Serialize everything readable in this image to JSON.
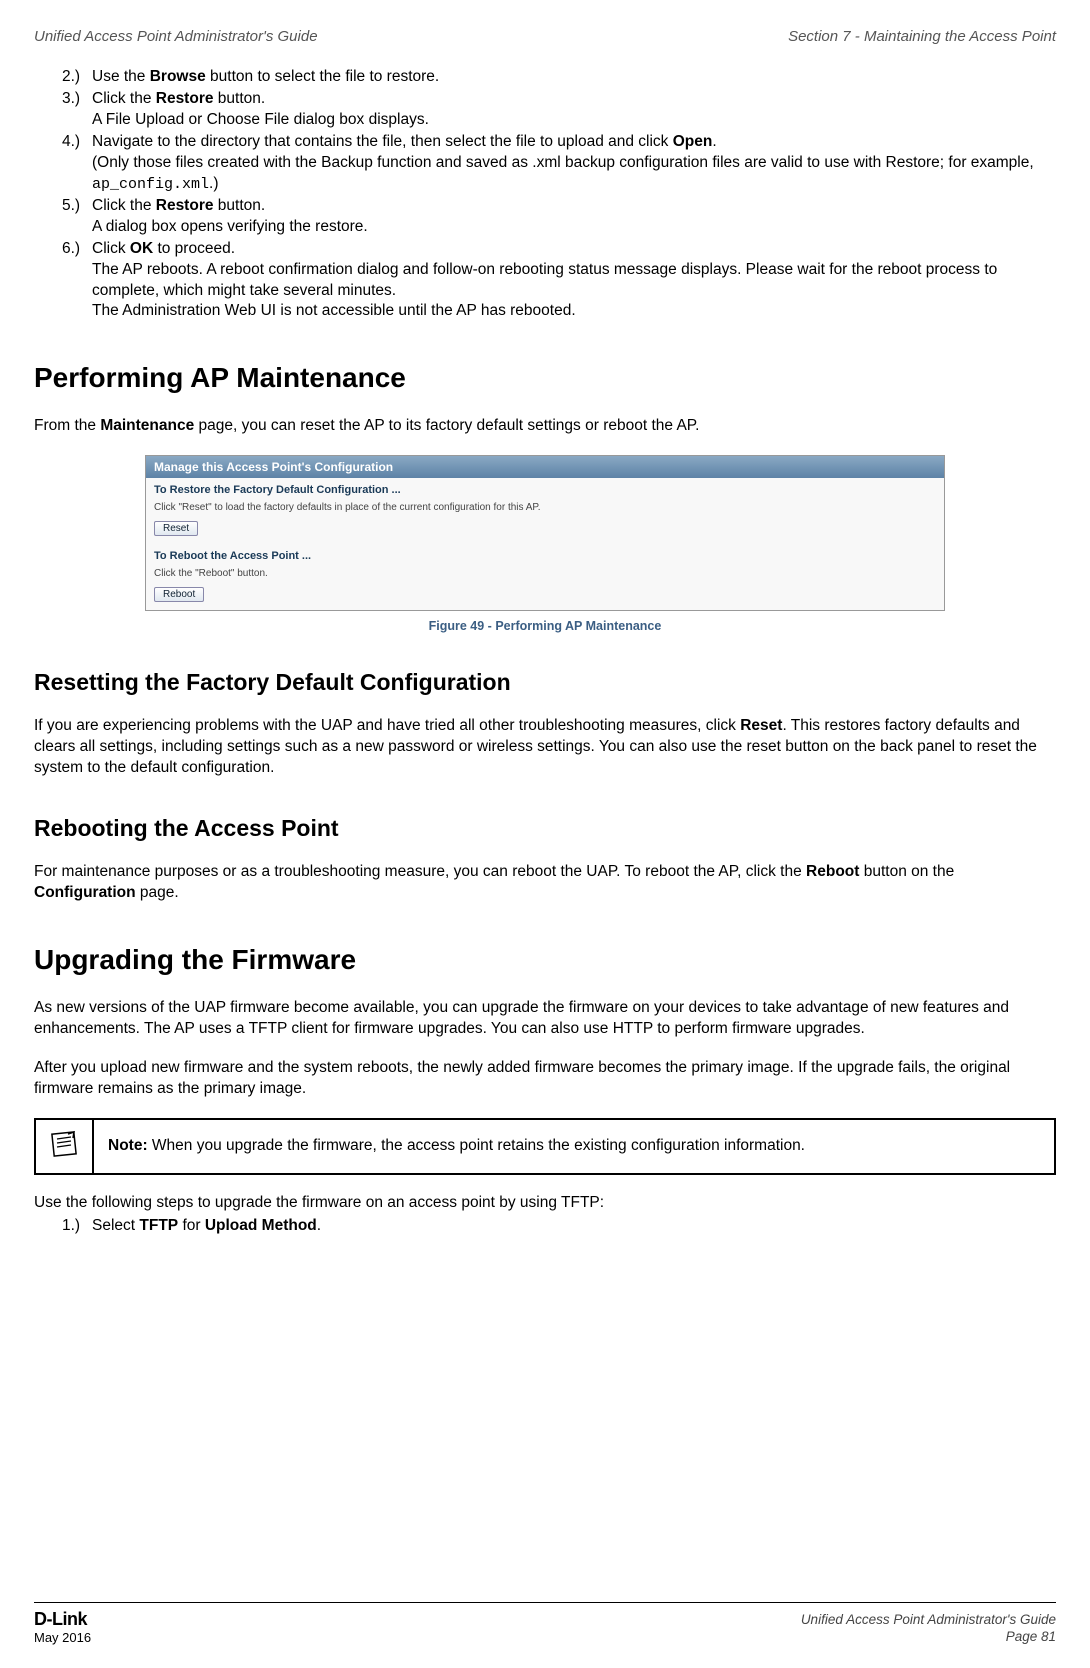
{
  "header": {
    "left": "Unified Access Point Administrator's Guide",
    "right": "Section 7 - Maintaining the Access Point"
  },
  "steps_top": [
    {
      "n": "2.)",
      "lines": [
        "Use the <b>Browse</b> button to select the file to restore."
      ]
    },
    {
      "n": "3.)",
      "lines": [
        "Click the <b>Restore</b> button.",
        "A File Upload or Choose File dialog box displays."
      ]
    },
    {
      "n": "4.)",
      "lines": [
        "Navigate to the directory that contains the file, then select the file to upload and click <b>Open</b>.",
        "(Only those files created with the Backup function and saved as .xml backup configuration files are valid to use with Restore; for example, <code class=\"mono\">ap_config.xml</code>.)"
      ]
    },
    {
      "n": "5.)",
      "lines": [
        "Click the <b>Restore</b> button.",
        "A dialog box opens verifying the restore."
      ]
    },
    {
      "n": "6.)",
      "lines": [
        "Click <b>OK</b> to proceed.",
        "The AP reboots. A reboot confirmation dialog and follow-on rebooting status message displays. Please wait for the reboot process to complete, which might take several minutes.",
        "The Administration Web UI is not accessible until the AP has rebooted."
      ]
    }
  ],
  "h1_a": "Performing AP Maintenance",
  "para_a": "From the <b>Maintenance</b> page, you can reset the AP to its factory default settings or reboot the AP.",
  "figure": {
    "titlebar": "Manage this Access Point's Configuration",
    "sub1": "To Restore the Factory Default Configuration ...",
    "text1": "Click \"Reset\" to load the factory defaults in place of the current configuration for this AP.",
    "btn1": "Reset",
    "sub2": "To Reboot the Access Point ...",
    "text2": "Click the \"Reboot\" button.",
    "btn2": "Reboot",
    "caption": "Figure 49 - Performing AP Maintenance"
  },
  "h2_a": "Resetting the Factory Default Configuration",
  "para_b": "If you are experiencing problems with the UAP and have tried all other troubleshooting measures, click <b>Reset</b>. This restores factory defaults and clears all settings, including settings such as a new password or wireless settings. You can also use the reset button on the back panel to reset the system to the default configuration.",
  "h2_b": "Rebooting the Access Point",
  "para_c": "For maintenance purposes or as a troubleshooting measure, you can reboot the UAP. To reboot the AP, click the <b>Reboot</b> button on the <b>Configuration</b> page.",
  "h1_b": "Upgrading the Firmware",
  "para_d": "As new versions of the UAP firmware become available, you can upgrade the firmware on your devices to take advantage of new features and enhancements. The AP uses a TFTP client for firmware upgrades. You can also use HTTP to perform firmware upgrades.",
  "para_e": "After you upload new firmware and the system reboots, the newly added firmware becomes the primary image. If the upgrade fails, the original firmware remains as the primary image.",
  "note": "<b>Note:</b> When you upgrade the firmware, the access point retains the existing configuration information.",
  "para_f": "Use the following steps to upgrade the firmware on an access point by using TFTP:",
  "steps_bottom": [
    {
      "n": "1.)",
      "lines": [
        "Select <b>TFTP</b> for <b>Upload Method</b>."
      ]
    }
  ],
  "footer": {
    "logo": "D-Link",
    "date": "May 2016",
    "guide": "Unified Access Point Administrator's Guide",
    "page": "Page 81"
  }
}
